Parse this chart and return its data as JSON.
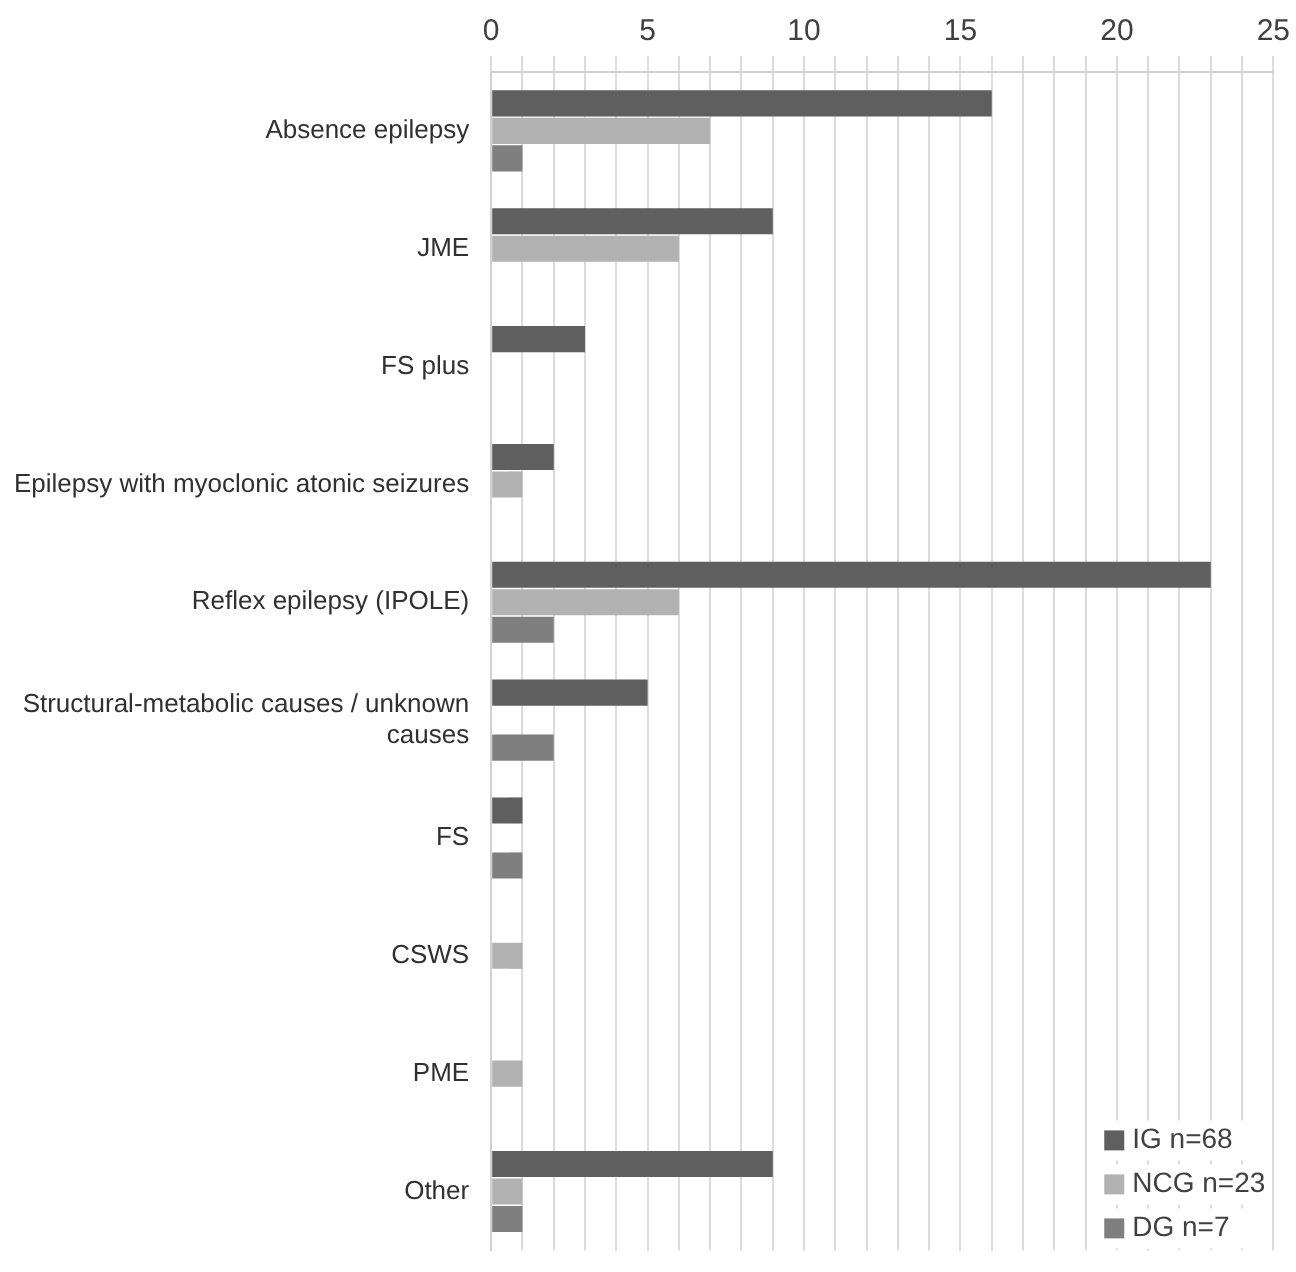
{
  "chart_data": {
    "type": "bar",
    "orientation": "horizontal",
    "categories": [
      "Absence epilepsy",
      "JME",
      "FS plus",
      "Epilepsy with myoclonic atonic seizures",
      "Reflex epilepsy (IPOLE)",
      "Structural-metabolic causes / unknown causes",
      "FS",
      "CSWS",
      "PME",
      "Other"
    ],
    "series": [
      {
        "name": "IG n=68",
        "color": "#5f5f5f",
        "values": [
          16,
          9,
          3,
          2,
          23,
          5,
          1,
          0,
          0,
          9
        ]
      },
      {
        "name": "NCG n=23",
        "color": "#b2b2b2",
        "values": [
          7,
          6,
          0,
          1,
          6,
          0,
          0,
          1,
          1,
          1
        ]
      },
      {
        "name": "DG n=7",
        "color": "#7f7f7f",
        "values": [
          1,
          0,
          0,
          0,
          2,
          2,
          1,
          0,
          0,
          1
        ]
      }
    ],
    "xlim": [
      0,
      25
    ],
    "xticks": [
      0,
      {
        "value": 1,
        "label": null
      },
      {
        "value": 2,
        "label": null
      },
      {
        "value": 3,
        "label": null
      },
      {
        "value": 4,
        "label": null
      },
      5,
      {
        "value": 6,
        "label": null
      },
      {
        "value": 7,
        "label": null
      },
      {
        "value": 8,
        "label": null
      },
      {
        "value": 9,
        "label": null
      },
      10,
      {
        "value": 11,
        "label": null
      },
      {
        "value": 12,
        "label": null
      },
      {
        "value": 13,
        "label": null
      },
      {
        "value": 14,
        "label": null
      },
      15,
      {
        "value": 16,
        "label": null
      },
      {
        "value": 17,
        "label": null
      },
      {
        "value": 18,
        "label": null
      },
      {
        "value": 19,
        "label": null
      },
      20,
      {
        "value": 21,
        "label": null
      },
      {
        "value": 22,
        "label": null
      },
      {
        "value": 23,
        "label": null
      },
      {
        "value": 24,
        "label": null
      },
      25
    ],
    "grid": "x",
    "legend": "bottom right"
  }
}
